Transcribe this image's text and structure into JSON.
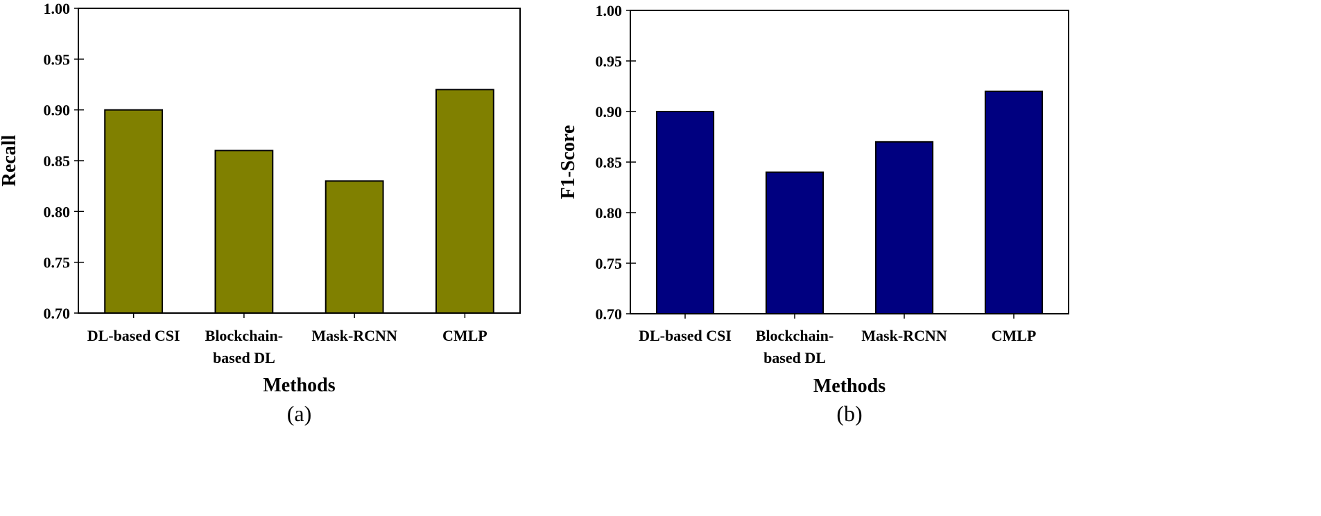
{
  "chart_data": [
    {
      "type": "bar",
      "panel_label": "(a)",
      "categories": [
        [
          "DL-based CSI"
        ],
        [
          "Blockchain-",
          "based DL"
        ],
        [
          "Mask-RCNN"
        ],
        [
          "CMLP"
        ]
      ],
      "values": [
        0.9,
        0.86,
        0.83,
        0.92
      ],
      "xlabel": "Methods",
      "ylabel": "Recall",
      "ylim": [
        0.7,
        1.0
      ],
      "yticks": [
        "0.70",
        "0.75",
        "0.80",
        "0.85",
        "0.90",
        "0.95",
        "1.00"
      ],
      "bar_color": "#808000"
    },
    {
      "type": "bar",
      "panel_label": "(b)",
      "categories": [
        [
          "DL-based CSI"
        ],
        [
          "Blockchain-",
          "based DL"
        ],
        [
          "Mask-RCNN"
        ],
        [
          "CMLP"
        ]
      ],
      "values": [
        0.9,
        0.84,
        0.87,
        0.92
      ],
      "xlabel": "Methods",
      "ylabel": "F1-Score",
      "ylim": [
        0.7,
        1.0
      ],
      "yticks": [
        "0.70",
        "0.75",
        "0.80",
        "0.85",
        "0.90",
        "0.95",
        "1.00"
      ],
      "bar_color": "#000080"
    }
  ]
}
